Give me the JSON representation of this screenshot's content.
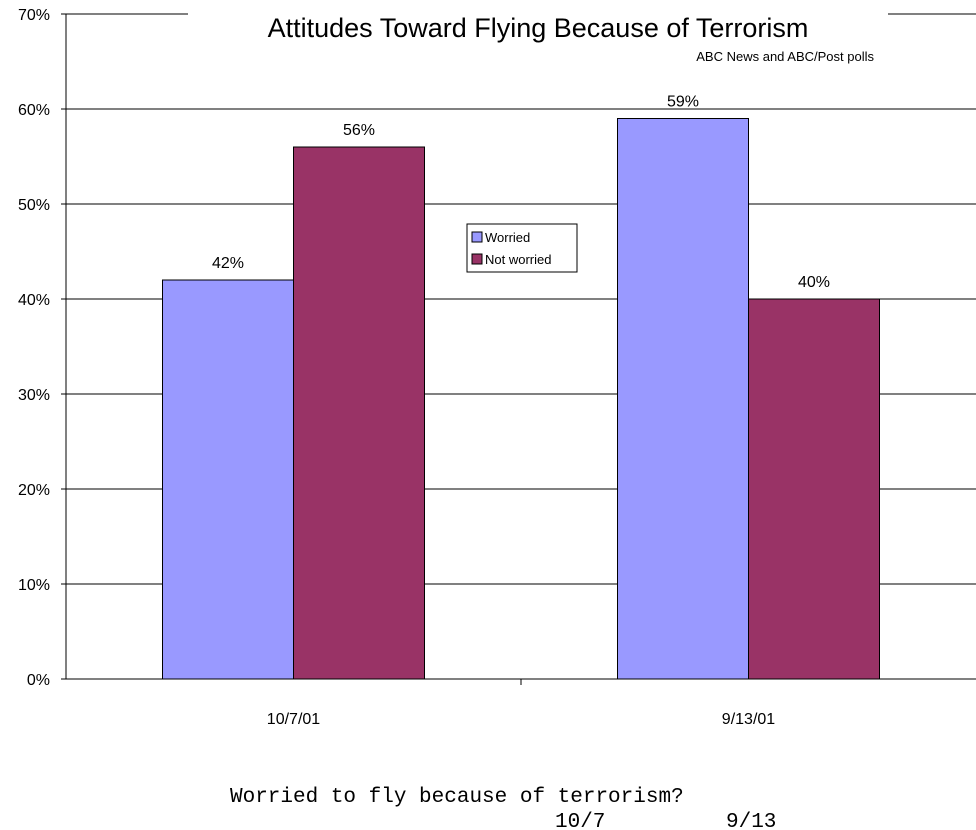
{
  "chart_data": {
    "type": "bar",
    "title": "Attitudes Toward Flying Because of Terrorism",
    "subtitle": "ABC News and ABC/Post polls",
    "categories": [
      "10/7/01",
      "9/13/01"
    ],
    "series": [
      {
        "name": "Worried",
        "values": [
          42,
          59
        ],
        "labels": [
          "42%",
          "59%"
        ],
        "color": "#9999ff"
      },
      {
        "name": "Not worried",
        "values": [
          56,
          40
        ],
        "labels": [
          "56%",
          "40%"
        ],
        "color": "#993366"
      }
    ],
    "ylim": [
      0,
      70
    ],
    "yticks": [
      0,
      10,
      20,
      30,
      40,
      50,
      60,
      70
    ],
    "ytick_labels": [
      "0%",
      "10%",
      "20%",
      "30%",
      "40%",
      "50%",
      "60%",
      "70%"
    ],
    "grid": true,
    "legend_position": "center"
  },
  "footer": {
    "question": "Worried to fly because of terrorism?",
    "col_1": "10/7",
    "col_2": "9/13"
  }
}
